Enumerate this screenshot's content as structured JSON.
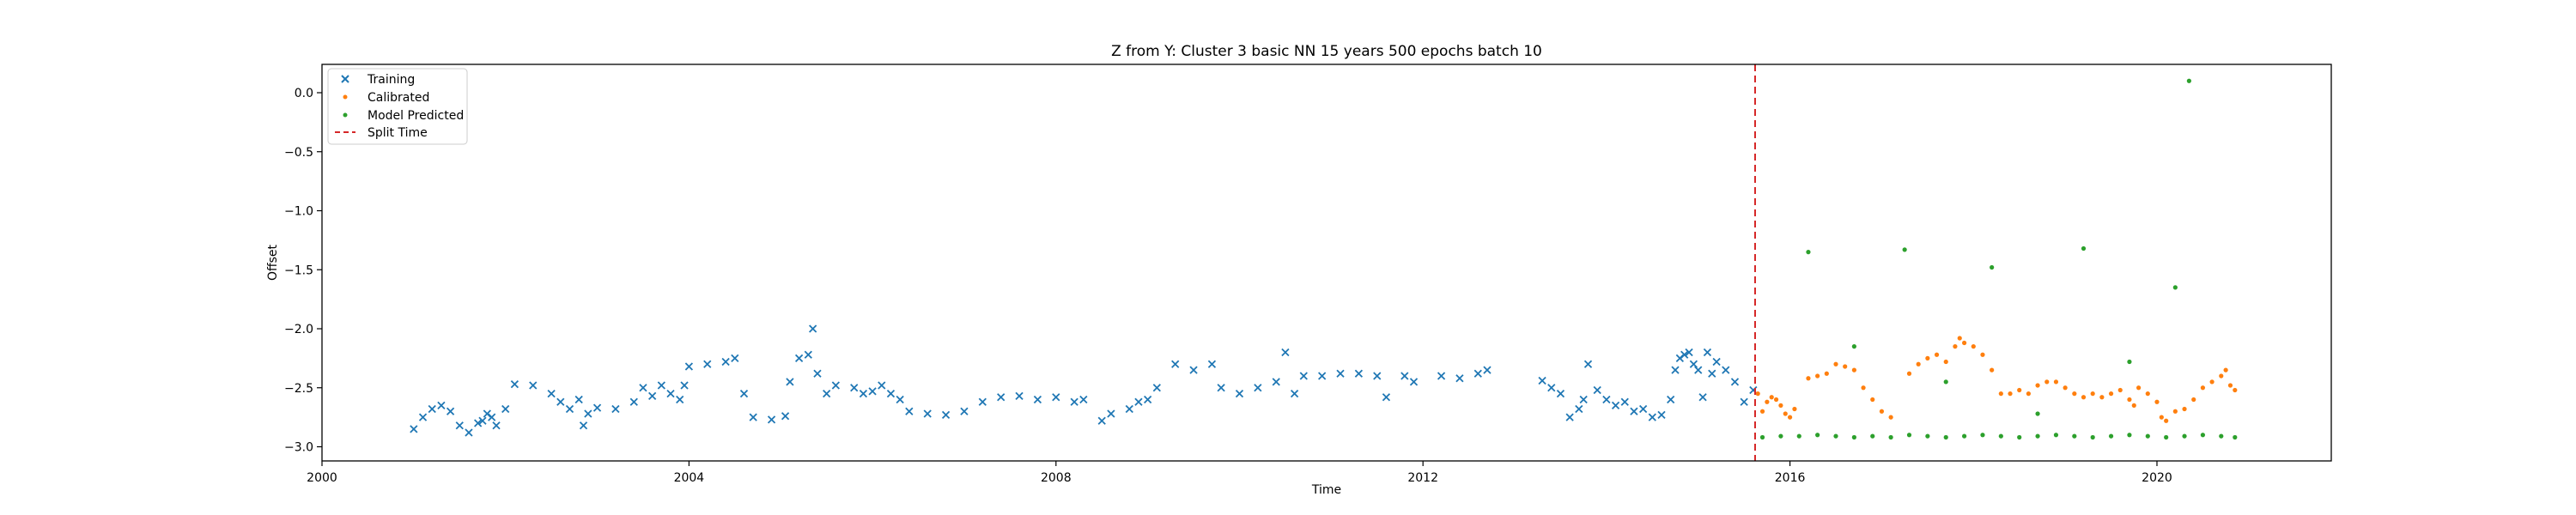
{
  "chart_data": {
    "type": "scatter",
    "title": "Z from Y: Cluster 3 basic NN 15 years 500 epochs batch 10",
    "xlabel": "Time",
    "ylabel": "Offset",
    "xlim": [
      2000.0,
      2021.9
    ],
    "ylim": [
      -3.12,
      0.24
    ],
    "x_ticks": [
      {
        "value": 2000,
        "label": "2000"
      },
      {
        "value": 2004,
        "label": "2004"
      },
      {
        "value": 2008,
        "label": "2008"
      },
      {
        "value": 2012,
        "label": "2012"
      },
      {
        "value": 2016,
        "label": "2016"
      },
      {
        "value": 2020,
        "label": "2020"
      }
    ],
    "y_ticks": [
      {
        "value": 0.0,
        "label": "0.0"
      },
      {
        "value": -0.5,
        "label": "−0.5"
      },
      {
        "value": -1.0,
        "label": "−1.0"
      },
      {
        "value": -1.5,
        "label": "−1.5"
      },
      {
        "value": -2.0,
        "label": "−2.0"
      },
      {
        "value": -2.5,
        "label": "−2.5"
      },
      {
        "value": -3.0,
        "label": "−3.0"
      }
    ],
    "grid": false,
    "legend_position": "upper-left",
    "legend": [
      {
        "label": "Training",
        "marker": "x",
        "color": "#1f77b4"
      },
      {
        "label": "Calibrated",
        "marker": "dot",
        "color": "#ff7f0e"
      },
      {
        "label": "Model Predicted",
        "marker": "dot",
        "color": "#2ca02c"
      },
      {
        "label": "Split Time",
        "marker": "dashed-line",
        "color": "#d62728"
      }
    ],
    "split_time": 2015.62,
    "series": [
      {
        "name": "Training",
        "marker": "x",
        "color": "#1f77b4",
        "points": [
          [
            2001.0,
            -2.85
          ],
          [
            2001.1,
            -2.75
          ],
          [
            2001.2,
            -2.68
          ],
          [
            2001.3,
            -2.65
          ],
          [
            2001.4,
            -2.7
          ],
          [
            2001.5,
            -2.82
          ],
          [
            2001.6,
            -2.88
          ],
          [
            2001.7,
            -2.8
          ],
          [
            2001.8,
            -2.72
          ],
          [
            2001.9,
            -2.82
          ],
          [
            2002.0,
            -2.68
          ],
          [
            2001.75,
            -2.78
          ],
          [
            2001.85,
            -2.75
          ],
          [
            2002.1,
            -2.47
          ],
          [
            2002.3,
            -2.48
          ],
          [
            2002.5,
            -2.55
          ],
          [
            2002.6,
            -2.62
          ],
          [
            2002.7,
            -2.68
          ],
          [
            2002.8,
            -2.6
          ],
          [
            2002.85,
            -2.82
          ],
          [
            2002.9,
            -2.72
          ],
          [
            2003.0,
            -2.67
          ],
          [
            2003.2,
            -2.68
          ],
          [
            2003.4,
            -2.62
          ],
          [
            2003.5,
            -2.5
          ],
          [
            2003.6,
            -2.57
          ],
          [
            2003.7,
            -2.48
          ],
          [
            2003.8,
            -2.55
          ],
          [
            2003.9,
            -2.6
          ],
          [
            2003.95,
            -2.48
          ],
          [
            2004.0,
            -2.32
          ],
          [
            2004.2,
            -2.3
          ],
          [
            2004.4,
            -2.28
          ],
          [
            2004.5,
            -2.25
          ],
          [
            2004.6,
            -2.55
          ],
          [
            2004.7,
            -2.75
          ],
          [
            2004.9,
            -2.77
          ],
          [
            2005.05,
            -2.74
          ],
          [
            2005.1,
            -2.45
          ],
          [
            2005.2,
            -2.25
          ],
          [
            2005.3,
            -2.22
          ],
          [
            2005.35,
            -2.0
          ],
          [
            2005.4,
            -2.38
          ],
          [
            2005.5,
            -2.55
          ],
          [
            2005.6,
            -2.48
          ],
          [
            2005.8,
            -2.5
          ],
          [
            2005.9,
            -2.55
          ],
          [
            2006.0,
            -2.53
          ],
          [
            2006.1,
            -2.48
          ],
          [
            2006.2,
            -2.55
          ],
          [
            2006.3,
            -2.6
          ],
          [
            2006.4,
            -2.7
          ],
          [
            2006.6,
            -2.72
          ],
          [
            2006.8,
            -2.73
          ],
          [
            2007.0,
            -2.7
          ],
          [
            2007.2,
            -2.62
          ],
          [
            2007.4,
            -2.58
          ],
          [
            2007.6,
            -2.57
          ],
          [
            2007.8,
            -2.6
          ],
          [
            2008.0,
            -2.58
          ],
          [
            2008.2,
            -2.62
          ],
          [
            2008.3,
            -2.6
          ],
          [
            2008.5,
            -2.78
          ],
          [
            2008.6,
            -2.72
          ],
          [
            2008.8,
            -2.68
          ],
          [
            2008.9,
            -2.62
          ],
          [
            2009.0,
            -2.6
          ],
          [
            2009.1,
            -2.5
          ],
          [
            2009.3,
            -2.3
          ],
          [
            2009.5,
            -2.35
          ],
          [
            2009.7,
            -2.3
          ],
          [
            2009.8,
            -2.5
          ],
          [
            2010.0,
            -2.55
          ],
          [
            2010.2,
            -2.5
          ],
          [
            2010.4,
            -2.45
          ],
          [
            2010.5,
            -2.2
          ],
          [
            2010.6,
            -2.55
          ],
          [
            2010.7,
            -2.4
          ],
          [
            2010.9,
            -2.4
          ],
          [
            2011.1,
            -2.38
          ],
          [
            2011.3,
            -2.38
          ],
          [
            2011.5,
            -2.4
          ],
          [
            2011.6,
            -2.58
          ],
          [
            2011.8,
            -2.4
          ],
          [
            2011.9,
            -2.45
          ],
          [
            2012.2,
            -2.4
          ],
          [
            2012.4,
            -2.42
          ],
          [
            2012.6,
            -2.38
          ],
          [
            2012.7,
            -2.35
          ],
          [
            2013.3,
            -2.44
          ],
          [
            2013.4,
            -2.5
          ],
          [
            2013.5,
            -2.55
          ],
          [
            2013.6,
            -2.75
          ],
          [
            2013.7,
            -2.68
          ],
          [
            2013.75,
            -2.6
          ],
          [
            2013.8,
            -2.3
          ],
          [
            2013.9,
            -2.52
          ],
          [
            2014.0,
            -2.6
          ],
          [
            2014.1,
            -2.65
          ],
          [
            2014.2,
            -2.62
          ],
          [
            2014.3,
            -2.7
          ],
          [
            2014.4,
            -2.68
          ],
          [
            2014.5,
            -2.75
          ],
          [
            2014.6,
            -2.73
          ],
          [
            2014.7,
            -2.6
          ],
          [
            2014.75,
            -2.35
          ],
          [
            2014.8,
            -2.25
          ],
          [
            2014.85,
            -2.22
          ],
          [
            2014.9,
            -2.2
          ],
          [
            2014.95,
            -2.3
          ],
          [
            2015.0,
            -2.35
          ],
          [
            2015.05,
            -2.58
          ],
          [
            2015.1,
            -2.2
          ],
          [
            2015.15,
            -2.38
          ],
          [
            2015.2,
            -2.28
          ],
          [
            2015.3,
            -2.35
          ],
          [
            2015.4,
            -2.45
          ],
          [
            2015.5,
            -2.62
          ],
          [
            2015.6,
            -2.52
          ]
        ]
      },
      {
        "name": "Calibrated",
        "marker": "dot",
        "color": "#ff7f0e",
        "points": [
          [
            2015.65,
            -2.55
          ],
          [
            2015.7,
            -2.7
          ],
          [
            2015.75,
            -2.62
          ],
          [
            2015.8,
            -2.58
          ],
          [
            2015.85,
            -2.6
          ],
          [
            2015.9,
            -2.65
          ],
          [
            2015.95,
            -2.72
          ],
          [
            2016.0,
            -2.75
          ],
          [
            2016.05,
            -2.68
          ],
          [
            2016.2,
            -2.42
          ],
          [
            2016.3,
            -2.4
          ],
          [
            2016.4,
            -2.38
          ],
          [
            2016.5,
            -2.3
          ],
          [
            2016.6,
            -2.32
          ],
          [
            2016.7,
            -2.35
          ],
          [
            2016.8,
            -2.5
          ],
          [
            2016.9,
            -2.6
          ],
          [
            2017.0,
            -2.7
          ],
          [
            2017.1,
            -2.75
          ],
          [
            2017.3,
            -2.38
          ],
          [
            2017.4,
            -2.3
          ],
          [
            2017.5,
            -2.25
          ],
          [
            2017.6,
            -2.22
          ],
          [
            2017.7,
            -2.28
          ],
          [
            2017.8,
            -2.15
          ],
          [
            2017.85,
            -2.08
          ],
          [
            2017.9,
            -2.12
          ],
          [
            2018.0,
            -2.15
          ],
          [
            2018.1,
            -2.22
          ],
          [
            2018.2,
            -2.35
          ],
          [
            2018.3,
            -2.55
          ],
          [
            2018.4,
            -2.55
          ],
          [
            2018.5,
            -2.52
          ],
          [
            2018.6,
            -2.55
          ],
          [
            2018.7,
            -2.48
          ],
          [
            2018.8,
            -2.45
          ],
          [
            2018.9,
            -2.45
          ],
          [
            2019.0,
            -2.5
          ],
          [
            2019.1,
            -2.55
          ],
          [
            2019.2,
            -2.58
          ],
          [
            2019.3,
            -2.55
          ],
          [
            2019.4,
            -2.58
          ],
          [
            2019.5,
            -2.55
          ],
          [
            2019.6,
            -2.52
          ],
          [
            2019.7,
            -2.6
          ],
          [
            2019.75,
            -2.65
          ],
          [
            2019.8,
            -2.5
          ],
          [
            2019.9,
            -2.55
          ],
          [
            2020.0,
            -2.62
          ],
          [
            2020.05,
            -2.75
          ],
          [
            2020.1,
            -2.78
          ],
          [
            2020.2,
            -2.7
          ],
          [
            2020.3,
            -2.68
          ],
          [
            2020.4,
            -2.6
          ],
          [
            2020.5,
            -2.5
          ],
          [
            2020.6,
            -2.45
          ],
          [
            2020.7,
            -2.4
          ],
          [
            2020.75,
            -2.35
          ],
          [
            2020.8,
            -2.48
          ],
          [
            2020.85,
            -2.52
          ]
        ]
      },
      {
        "name": "Model Predicted",
        "marker": "dot",
        "color": "#2ca02c",
        "points": [
          [
            2015.7,
            -2.92
          ],
          [
            2015.9,
            -2.91
          ],
          [
            2016.1,
            -2.91
          ],
          [
            2016.3,
            -2.9
          ],
          [
            2016.5,
            -2.91
          ],
          [
            2016.7,
            -2.92
          ],
          [
            2016.9,
            -2.91
          ],
          [
            2017.1,
            -2.92
          ],
          [
            2017.3,
            -2.9
          ],
          [
            2017.5,
            -2.91
          ],
          [
            2017.7,
            -2.92
          ],
          [
            2017.9,
            -2.91
          ],
          [
            2018.1,
            -2.9
          ],
          [
            2018.3,
            -2.91
          ],
          [
            2018.5,
            -2.92
          ],
          [
            2018.7,
            -2.91
          ],
          [
            2018.9,
            -2.9
          ],
          [
            2019.1,
            -2.91
          ],
          [
            2019.3,
            -2.92
          ],
          [
            2019.5,
            -2.91
          ],
          [
            2019.7,
            -2.9
          ],
          [
            2019.9,
            -2.91
          ],
          [
            2020.1,
            -2.92
          ],
          [
            2020.3,
            -2.91
          ],
          [
            2020.5,
            -2.9
          ],
          [
            2020.7,
            -2.91
          ],
          [
            2020.85,
            -2.92
          ],
          [
            2016.2,
            -1.35
          ],
          [
            2016.7,
            -2.15
          ],
          [
            2017.25,
            -1.33
          ],
          [
            2017.7,
            -2.45
          ],
          [
            2018.2,
            -1.48
          ],
          [
            2018.7,
            -2.72
          ],
          [
            2019.2,
            -1.32
          ],
          [
            2019.7,
            -2.28
          ],
          [
            2020.2,
            -1.65
          ],
          [
            2020.35,
            0.1
          ]
        ]
      }
    ]
  }
}
